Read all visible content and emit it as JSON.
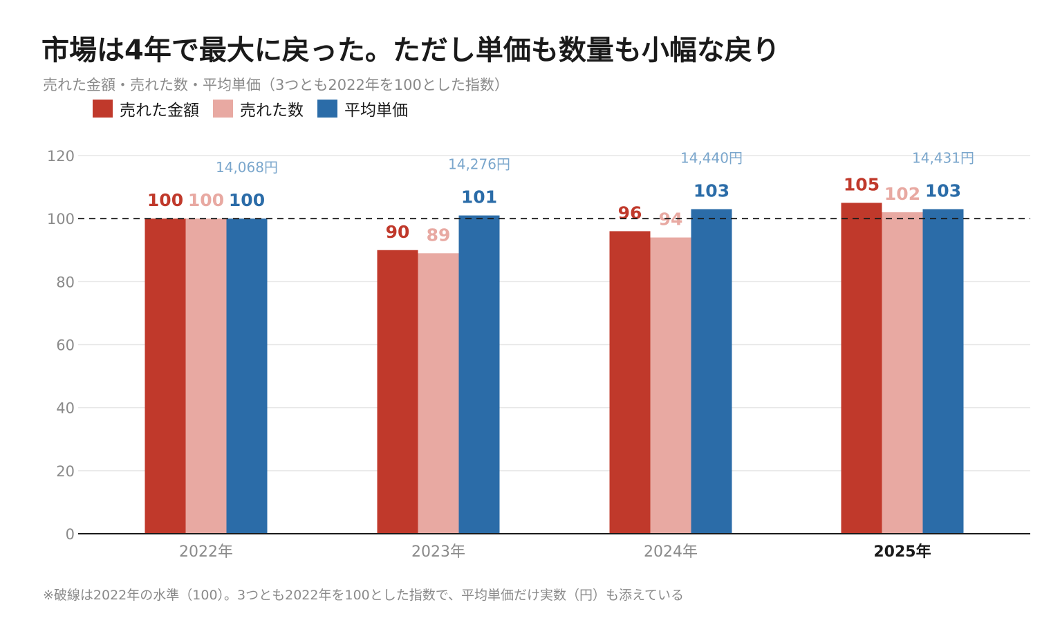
{
  "title": "市場は4年で最大に戻った。ただし単価も数量も小幅な戻り",
  "subtitle": "売れた金額・売れた数・平均単価（3つとも2022年を100とした指数）",
  "footnote": "※破線は2022年の水準（100）。3つとも2022年を100とした指数で、平均単価だけ実数（円）も添えている",
  "chart_data": {
    "type": "bar",
    "categories": [
      "2022年",
      "2023年",
      "2024年",
      "2025年"
    ],
    "highlight_category": "2025年",
    "series": [
      {
        "name": "売れた金額",
        "color": "#c0392b",
        "label_color": "#c0392b",
        "values": [
          100,
          90,
          96,
          105
        ]
      },
      {
        "name": "売れた数",
        "color": "#e8a9a2",
        "label_color": "#e8a9a2",
        "values": [
          100,
          89,
          94,
          102
        ]
      },
      {
        "name": "平均単価",
        "color": "#2b6ca8",
        "label_color": "#2b6ca8",
        "values": [
          100,
          101,
          103,
          103
        ]
      }
    ],
    "price_labels": [
      "14,068円",
      "14,276円",
      "14,440円",
      "14,431円"
    ],
    "price_label_color": "#7aa6cc",
    "ylim": [
      0,
      120
    ],
    "yticks": [
      0,
      20,
      40,
      60,
      80,
      100,
      120
    ],
    "reference_line": 100,
    "grid": true,
    "legend": "top-left"
  }
}
